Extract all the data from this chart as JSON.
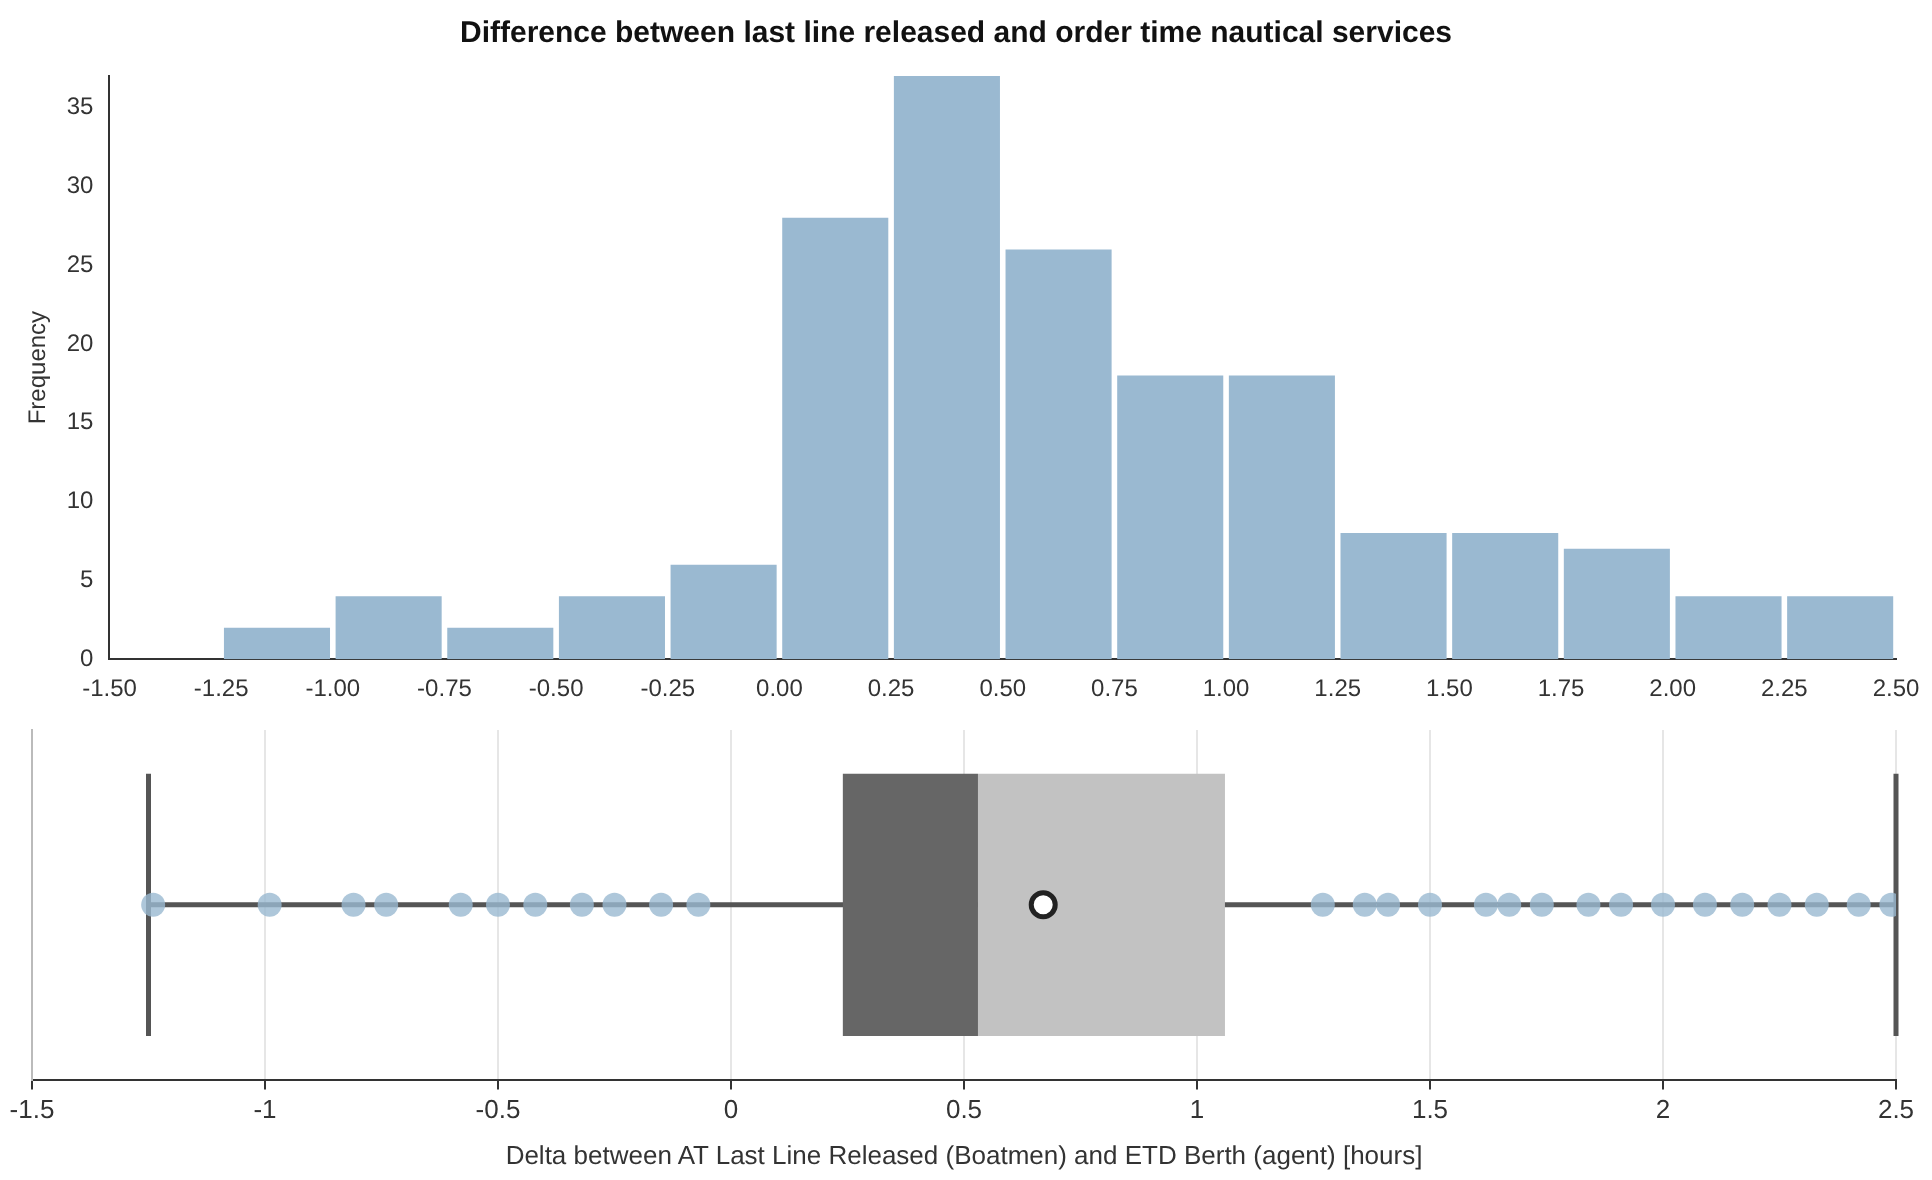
{
  "chart_data": [
    {
      "type": "histogram",
      "title": "Difference between last line released and order time nautical services",
      "ylabel": "Frequency",
      "bins": [
        -1.25,
        -1.0,
        -0.75,
        -0.5,
        -0.25,
        0.0,
        0.25,
        0.5,
        0.75,
        1.0,
        1.25,
        1.5,
        1.75,
        2.0,
        2.25,
        2.5
      ],
      "values": [
        2,
        4,
        2,
        4,
        6,
        28,
        37,
        26,
        18,
        18,
        8,
        8,
        7,
        4,
        4
      ],
      "color": "#9ab9d1",
      "xlim": [
        -1.5,
        2.5
      ],
      "xticks": [
        {
          "value": -1.5,
          "label": "-1.50"
        },
        {
          "value": -1.25,
          "label": "-1.25"
        },
        {
          "value": -1.0,
          "label": "-1.00"
        },
        {
          "value": -0.75,
          "label": "-0.75"
        },
        {
          "value": -0.5,
          "label": "-0.50"
        },
        {
          "value": -0.25,
          "label": "-0.25"
        },
        {
          "value": 0,
          "label": "0.00"
        },
        {
          "value": 0.25,
          "label": "0.25"
        },
        {
          "value": 0.5,
          "label": "0.50"
        },
        {
          "value": 0.75,
          "label": "0.75"
        },
        {
          "value": 1.0,
          "label": "1.00"
        },
        {
          "value": 1.25,
          "label": "1.25"
        },
        {
          "value": 1.5,
          "label": "1.50"
        },
        {
          "value": 1.75,
          "label": "1.75"
        },
        {
          "value": 2.0,
          "label": "2.00"
        },
        {
          "value": 2.25,
          "label": "2.25"
        },
        {
          "value": 2.5,
          "label": "2.50"
        }
      ],
      "ylim": [
        0,
        37
      ],
      "yticks": [
        0,
        5,
        10,
        15,
        20,
        25,
        30,
        35
      ],
      "grid": false
    },
    {
      "type": "box",
      "orientation": "horizontal",
      "xlabel": "Delta between AT Last Line Released (Boatmen) and ETD Berth (agent) [hours]",
      "categories": [
        null
      ],
      "boxes": [
        {
          "low": -1.25,
          "q1": 0.24,
          "median": 0.53,
          "q3": 1.06,
          "high": 2.5,
          "mean": 0.67,
          "outliers": [
            -1.24,
            -0.99,
            -0.81,
            -0.74,
            -0.58,
            -0.5,
            -0.42,
            -0.32,
            -0.25,
            -0.15,
            -0.07,
            1.27,
            1.36,
            1.41,
            1.5,
            1.62,
            1.67,
            1.74,
            1.84,
            1.91,
            2.0,
            2.09,
            2.17,
            2.25,
            2.33,
            2.42,
            2.49
          ]
        }
      ],
      "color": "#666666",
      "xlim": [
        -1.5,
        2.5
      ],
      "xticks": [
        -1.5,
        -1.0,
        -0.5,
        0.0,
        0.5,
        1.0,
        1.5,
        2.0,
        2.5
      ],
      "tick_labels": "x",
      "grid": "x"
    }
  ]
}
